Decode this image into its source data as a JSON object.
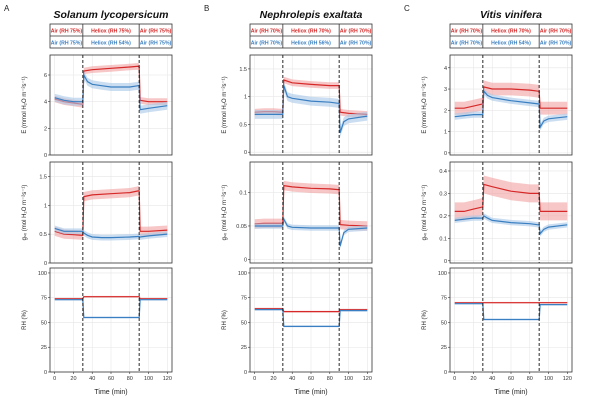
{
  "colors": {
    "red": "#d62828",
    "blue": "#3a7fc1",
    "red_band": "#f1a1a1",
    "blue_band": "#a9c8e8",
    "grid": "#e6e6e6",
    "panel_border": "#333333"
  },
  "chart_data": [
    {
      "type": "line",
      "panel_letter": "A",
      "title": "Solanum lycopersicum",
      "legend": {
        "red_row": [
          "Air (RH 75%)",
          "Heliox (RH 75%)",
          "Air (RH 75%)"
        ],
        "blue_row": [
          "Air (RH 75%)",
          "Heliox (RH 54%)",
          "Air (RH 75%)"
        ]
      },
      "xlabel": "Time (min)",
      "xlim": [
        -5,
        125
      ],
      "xticks": [
        0,
        20,
        40,
        60,
        80,
        100,
        120
      ],
      "phase_boundaries": [
        30,
        90
      ],
      "subplots": [
        {
          "ylabel": "E (mmol H₂O m⁻²s⁻¹)",
          "ylim": [
            0,
            7.5
          ],
          "yticks": [
            0,
            2,
            4,
            6
          ],
          "series": [
            {
              "name": "red",
              "x": [
                0,
                10,
                20,
                30,
                31,
                40,
                60,
                80,
                89,
                90,
                91,
                100,
                120
              ],
              "y": [
                4.2,
                4.0,
                3.9,
                3.8,
                6.3,
                6.4,
                6.5,
                6.6,
                6.65,
                6.6,
                4.1,
                4.0,
                4.0
              ],
              "err": 0.25
            },
            {
              "name": "blue",
              "x": [
                0,
                10,
                20,
                30,
                31,
                35,
                40,
                50,
                60,
                80,
                89,
                90,
                91,
                100,
                120
              ],
              "y": [
                4.3,
                4.1,
                4.0,
                4.0,
                6.0,
                5.5,
                5.3,
                5.2,
                5.1,
                5.1,
                5.2,
                5.2,
                3.4,
                3.5,
                3.7
              ],
              "err": 0.3
            }
          ]
        },
        {
          "ylabel": "gₛᵥ (mol H₂O m⁻²s⁻¹)",
          "ylim": [
            0,
            1.75
          ],
          "yticks": [
            0,
            0.5,
            1.0,
            1.5
          ],
          "series": [
            {
              "name": "red",
              "x": [
                0,
                10,
                20,
                30,
                31,
                40,
                60,
                80,
                89,
                90,
                91,
                100,
                120
              ],
              "y": [
                0.55,
                0.5,
                0.49,
                0.48,
                1.15,
                1.18,
                1.2,
                1.22,
                1.25,
                1.25,
                0.55,
                0.55,
                0.57
              ],
              "err": 0.08
            },
            {
              "name": "blue",
              "x": [
                0,
                10,
                20,
                30,
                31,
                35,
                40,
                50,
                60,
                80,
                89,
                90,
                91,
                100,
                120
              ],
              "y": [
                0.6,
                0.55,
                0.55,
                0.55,
                0.52,
                0.48,
                0.45,
                0.44,
                0.44,
                0.45,
                0.46,
                0.46,
                0.45,
                0.47,
                0.5
              ],
              "err": 0.05
            }
          ]
        },
        {
          "ylabel": "RH (%)",
          "ylim": [
            0,
            105
          ],
          "yticks": [
            0,
            25,
            50,
            75,
            100
          ],
          "series": [
            {
              "name": "red",
              "x": [
                0,
                30,
                31,
                89,
                90,
                91,
                120
              ],
              "y": [
                74,
                74,
                76,
                76,
                76,
                74,
                74
              ],
              "err": 0.8
            },
            {
              "name": "blue",
              "x": [
                0,
                30,
                31,
                89,
                90,
                91,
                120
              ],
              "y": [
                73,
                73,
                55,
                55,
                55,
                73,
                73
              ],
              "err": 0.8
            }
          ]
        }
      ]
    },
    {
      "type": "line",
      "panel_letter": "B",
      "title": "Nephrolepis exaltata",
      "legend": {
        "red_row": [
          "Air (RH 70%)",
          "Heliox (RH 70%)",
          "Air (RH 70%)"
        ],
        "blue_row": [
          "Air (RH 70%)",
          "Heliox (RH 56%)",
          "Air (RH 70%)"
        ]
      },
      "xlabel": "Time (min)",
      "xlim": [
        -5,
        125
      ],
      "xticks": [
        0,
        20,
        40,
        60,
        80,
        100,
        120
      ],
      "phase_boundaries": [
        30,
        90
      ],
      "subplots": [
        {
          "ylabel": "E (mmol H₂O m⁻²s⁻¹)",
          "ylim": [
            -0.05,
            1.75
          ],
          "yticks": [
            0.0,
            0.5,
            1.0,
            1.5
          ],
          "series": [
            {
              "name": "red",
              "x": [
                0,
                10,
                20,
                30,
                31,
                40,
                60,
                80,
                89,
                90,
                91,
                100,
                120
              ],
              "y": [
                0.72,
                0.73,
                0.73,
                0.72,
                1.3,
                1.25,
                1.22,
                1.2,
                1.2,
                1.2,
                0.72,
                0.7,
                0.68
              ],
              "err": 0.06
            },
            {
              "name": "blue",
              "x": [
                0,
                10,
                20,
                30,
                31,
                35,
                40,
                60,
                80,
                89,
                90,
                91,
                95,
                100,
                120
              ],
              "y": [
                0.68,
                0.68,
                0.68,
                0.68,
                1.2,
                1.0,
                0.97,
                0.92,
                0.9,
                0.88,
                0.88,
                0.35,
                0.55,
                0.6,
                0.65
              ],
              "err": 0.08
            }
          ]
        },
        {
          "ylabel": "gₛᵥ (mol H₂O m⁻²s⁻¹)",
          "ylim": [
            -0.005,
            0.145
          ],
          "yticks": [
            0.0,
            0.05,
            0.1
          ],
          "series": [
            {
              "name": "red",
              "x": [
                0,
                10,
                20,
                30,
                31,
                40,
                60,
                80,
                89,
                90,
                91,
                100,
                120
              ],
              "y": [
                0.053,
                0.054,
                0.054,
                0.054,
                0.11,
                0.108,
                0.106,
                0.105,
                0.104,
                0.104,
                0.052,
                0.051,
                0.05
              ],
              "err": 0.007
            },
            {
              "name": "blue",
              "x": [
                0,
                10,
                20,
                30,
                31,
                35,
                40,
                60,
                80,
                89,
                90,
                91,
                95,
                100,
                120
              ],
              "y": [
                0.05,
                0.05,
                0.05,
                0.05,
                0.06,
                0.05,
                0.048,
                0.047,
                0.047,
                0.047,
                0.047,
                0.02,
                0.04,
                0.045,
                0.047
              ],
              "err": 0.004
            }
          ]
        },
        {
          "ylabel": "RH (%)",
          "ylim": [
            0,
            105
          ],
          "yticks": [
            0,
            25,
            50,
            75,
            100
          ],
          "series": [
            {
              "name": "red",
              "x": [
                0,
                30,
                31,
                89,
                90,
                91,
                120
              ],
              "y": [
                64,
                64,
                61,
                61,
                61,
                63,
                63
              ],
              "err": 0.8
            },
            {
              "name": "blue",
              "x": [
                0,
                30,
                31,
                89,
                90,
                91,
                120
              ],
              "y": [
                63,
                63,
                46,
                46,
                46,
                62,
                62
              ],
              "err": 0.8
            }
          ]
        }
      ]
    },
    {
      "type": "line",
      "panel_letter": "C",
      "title": "Vitis vinifera",
      "legend": {
        "red_row": [
          "Air (RH 70%)",
          "Heliox (RH 70%)",
          "Air (RH 70%)"
        ],
        "blue_row": [
          "Air (RH 70%)",
          "Heliox (RH 54%)",
          "Air (RH 70%)"
        ]
      },
      "xlabel": "Time (min)",
      "xlim": [
        -5,
        125
      ],
      "xticks": [
        0,
        20,
        40,
        60,
        80,
        100,
        120
      ],
      "phase_boundaries": [
        30,
        90
      ],
      "subplots": [
        {
          "ylabel": "E (mmol H₂O m⁻²s⁻¹)",
          "ylim": [
            -0.1,
            4.6
          ],
          "yticks": [
            0,
            1,
            2,
            3,
            4
          ],
          "series": [
            {
              "name": "red",
              "x": [
                0,
                10,
                20,
                30,
                31,
                40,
                60,
                80,
                89,
                90,
                91,
                100,
                120
              ],
              "y": [
                2.1,
                2.1,
                2.2,
                2.3,
                3.1,
                3.0,
                3.0,
                2.95,
                2.9,
                2.9,
                2.1,
                2.1,
                2.1
              ],
              "err": 0.3
            },
            {
              "name": "blue",
              "x": [
                0,
                10,
                20,
                30,
                31,
                35,
                40,
                60,
                80,
                89,
                90,
                91,
                95,
                100,
                120
              ],
              "y": [
                1.7,
                1.75,
                1.8,
                1.8,
                2.9,
                2.7,
                2.6,
                2.45,
                2.35,
                2.3,
                2.3,
                1.2,
                1.5,
                1.6,
                1.7
              ],
              "err": 0.15
            }
          ]
        },
        {
          "ylabel": "gₛᵥ (mol H₂O m⁻²s⁻¹)",
          "ylim": [
            -0.01,
            0.44
          ],
          "yticks": [
            0.0,
            0.1,
            0.2,
            0.3,
            0.4
          ],
          "series": [
            {
              "name": "red",
              "x": [
                0,
                10,
                20,
                30,
                31,
                40,
                60,
                80,
                89,
                90,
                91,
                100,
                120
              ],
              "y": [
                0.22,
                0.22,
                0.23,
                0.24,
                0.34,
                0.33,
                0.31,
                0.3,
                0.3,
                0.3,
                0.22,
                0.22,
                0.22
              ],
              "err": 0.04
            },
            {
              "name": "blue",
              "x": [
                0,
                10,
                20,
                30,
                31,
                35,
                40,
                60,
                80,
                89,
                90,
                91,
                95,
                100,
                120
              ],
              "y": [
                0.18,
                0.185,
                0.19,
                0.19,
                0.2,
                0.19,
                0.18,
                0.17,
                0.165,
                0.16,
                0.16,
                0.12,
                0.14,
                0.15,
                0.16
              ],
              "err": 0.012
            }
          ]
        },
        {
          "ylabel": "RH (%)",
          "ylim": [
            0,
            105
          ],
          "yticks": [
            0,
            25,
            50,
            75,
            100
          ],
          "series": [
            {
              "name": "red",
              "x": [
                0,
                30,
                31,
                89,
                90,
                91,
                120
              ],
              "y": [
                70,
                70,
                70,
                70,
                70,
                70,
                70
              ],
              "err": 0.8
            },
            {
              "name": "blue",
              "x": [
                0,
                30,
                31,
                89,
                90,
                91,
                120
              ],
              "y": [
                69,
                69,
                53,
                53,
                53,
                68,
                68
              ],
              "err": 0.8
            }
          ]
        }
      ]
    }
  ]
}
